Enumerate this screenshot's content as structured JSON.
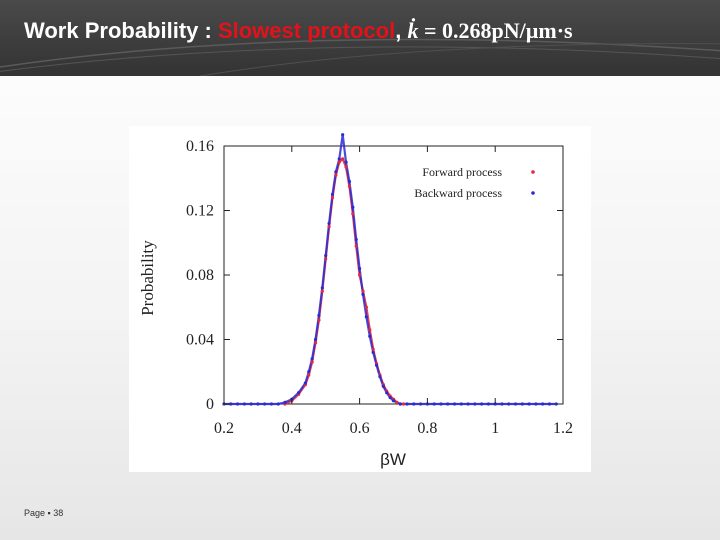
{
  "slide": {
    "title_prefix": "Work Probability : ",
    "title_highlight": "Slowest protocol",
    "title_sep": ", ",
    "title_math_symbol": "k̇",
    "title_math_rest": " = 0.268pN/µm·s",
    "footer": "Page ▪ 38"
  },
  "colors": {
    "header": "#3a3a3a",
    "highlight": "#e2121b",
    "forward": "#e8283a",
    "backward": "#2b2bd0"
  },
  "chart_data": {
    "type": "scatter",
    "xlabel": "βW",
    "ylabel": "Probability",
    "xlim": [
      0.2,
      1.2
    ],
    "ylim": [
      0,
      0.16
    ],
    "xticks": [
      0.2,
      0.4,
      0.6,
      0.8,
      1,
      1.2
    ],
    "yticks": [
      0,
      0.04,
      0.08,
      0.12,
      0.16
    ],
    "xtick_labels": [
      "0.2",
      "0.4",
      "0.6",
      "0.8",
      "1",
      "1.2"
    ],
    "ytick_labels": [
      "0",
      "0.04",
      "0.08",
      "0.12",
      "0.16"
    ],
    "grid": false,
    "legend_position": "top-right",
    "series": [
      {
        "name": "Forward process",
        "color": "#e8283a",
        "marker": "dot",
        "x": [
          0.38,
          0.4,
          0.42,
          0.44,
          0.45,
          0.46,
          0.47,
          0.48,
          0.49,
          0.5,
          0.51,
          0.52,
          0.53,
          0.54,
          0.55,
          0.56,
          0.57,
          0.58,
          0.59,
          0.6,
          0.61,
          0.62,
          0.63,
          0.64,
          0.65,
          0.66,
          0.67,
          0.68,
          0.69,
          0.7,
          0.71,
          0.72,
          0.73
        ],
        "y": [
          0.0,
          0.002,
          0.006,
          0.012,
          0.018,
          0.026,
          0.038,
          0.052,
          0.07,
          0.09,
          0.11,
          0.128,
          0.142,
          0.15,
          0.152,
          0.147,
          0.135,
          0.118,
          0.098,
          0.08,
          0.07,
          0.06,
          0.046,
          0.034,
          0.025,
          0.018,
          0.012,
          0.008,
          0.005,
          0.003,
          0.001,
          0.0,
          0.0
        ]
      },
      {
        "name": "Backward process",
        "color": "#2b2bd0",
        "marker": "dot",
        "x": [
          0.2,
          0.22,
          0.24,
          0.26,
          0.28,
          0.3,
          0.32,
          0.34,
          0.36,
          0.38,
          0.4,
          0.42,
          0.44,
          0.45,
          0.46,
          0.47,
          0.48,
          0.49,
          0.5,
          0.51,
          0.52,
          0.53,
          0.54,
          0.55,
          0.56,
          0.57,
          0.58,
          0.59,
          0.6,
          0.61,
          0.62,
          0.63,
          0.64,
          0.65,
          0.66,
          0.67,
          0.68,
          0.69,
          0.7,
          0.72,
          0.74,
          0.76,
          0.78,
          0.8,
          0.82,
          0.84,
          0.86,
          0.88,
          0.9,
          0.92,
          0.94,
          0.96,
          0.98,
          1.0,
          1.02,
          1.04,
          1.06,
          1.08,
          1.1,
          1.12,
          1.14,
          1.16,
          1.18
        ],
        "y": [
          0,
          0,
          0,
          0,
          0,
          0,
          0,
          0,
          0,
          0.001,
          0.003,
          0.007,
          0.013,
          0.02,
          0.028,
          0.04,
          0.055,
          0.072,
          0.092,
          0.112,
          0.13,
          0.144,
          0.152,
          0.167,
          0.15,
          0.138,
          0.122,
          0.102,
          0.084,
          0.068,
          0.054,
          0.042,
          0.032,
          0.024,
          0.017,
          0.011,
          0.007,
          0.004,
          0.002,
          0,
          0,
          0,
          0,
          0,
          0,
          0,
          0,
          0,
          0,
          0,
          0,
          0,
          0,
          0,
          0,
          0,
          0,
          0,
          0,
          0,
          0,
          0,
          0
        ]
      }
    ]
  }
}
